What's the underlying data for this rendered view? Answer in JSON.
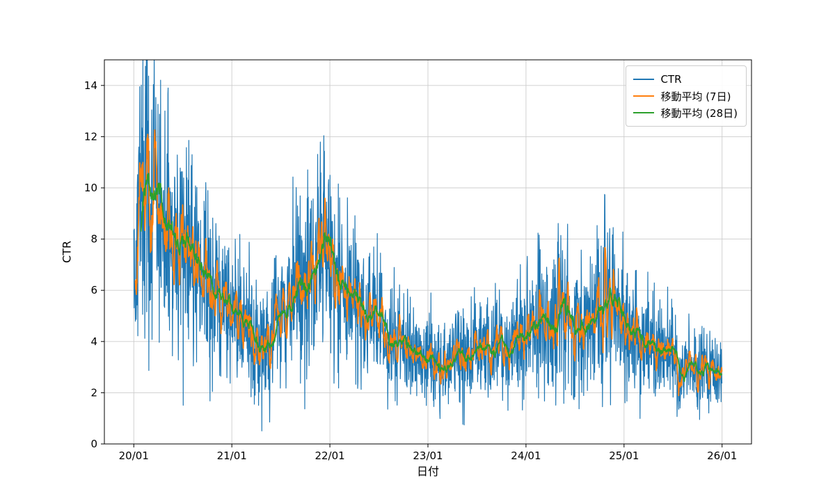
{
  "chart_data": {
    "type": "line",
    "title": "",
    "xlabel": "日付",
    "ylabel": "CTR",
    "ylim": [
      0,
      15
    ],
    "x_range": [
      -3.6,
      75.6
    ],
    "grid": true,
    "legend_position": "upper right",
    "x_ticks": {
      "labels": [
        "20/01",
        "21/01",
        "22/01",
        "23/01",
        "24/01",
        "25/01",
        "26/01"
      ],
      "month_positions": [
        0,
        12,
        24,
        36,
        48,
        60,
        72
      ]
    },
    "y_ticks": [
      0,
      2,
      4,
      6,
      8,
      10,
      12,
      14
    ],
    "series": [
      {
        "name": "CTR",
        "color": "#1f77b4",
        "kind": "raw",
        "linewidth": 1.2
      },
      {
        "name": "移動平均 (7日)",
        "color": "#ff7f0e",
        "kind": "moving_average",
        "window": 7,
        "linewidth": 1.8
      },
      {
        "name": "移動平均 (28日)",
        "color": "#2ca02c",
        "kind": "moving_average",
        "window": 28,
        "linewidth": 1.8
      }
    ],
    "days": 2192,
    "days_per_month": 30.44,
    "ma28_anchors_monthly": [
      6.5,
      11.0,
      9.2,
      9.6,
      8.0,
      7.2,
      8.3,
      7.2,
      6.4,
      6.1,
      6.2,
      5.7,
      5.3,
      4.9,
      4.5,
      4.0,
      3.7,
      4.4,
      5.1,
      5.7,
      6.4,
      6.3,
      6.6,
      7.8,
      7.2,
      6.3,
      5.9,
      5.7,
      5.1,
      4.8,
      4.8,
      4.3,
      4.0,
      3.9,
      3.5,
      3.3,
      3.3,
      3.0,
      3.2,
      3.1,
      3.3,
      3.5,
      3.6,
      3.7,
      3.8,
      3.7,
      4.0,
      4.3,
      4.6,
      4.7,
      4.9,
      4.8,
      5.0,
      4.9,
      4.7,
      4.9,
      5.2,
      5.6,
      5.9,
      5.3,
      4.7,
      4.4,
      4.2,
      4.0,
      3.8,
      3.5,
      3.2,
      3.0,
      3.1,
      2.9,
      3.1,
      3.0,
      2.4
    ],
    "noise": {
      "seed": 42,
      "amplitude": 0.5
    },
    "grid_color": "#cccccc",
    "spine_color": "#000000",
    "background": "#ffffff"
  }
}
